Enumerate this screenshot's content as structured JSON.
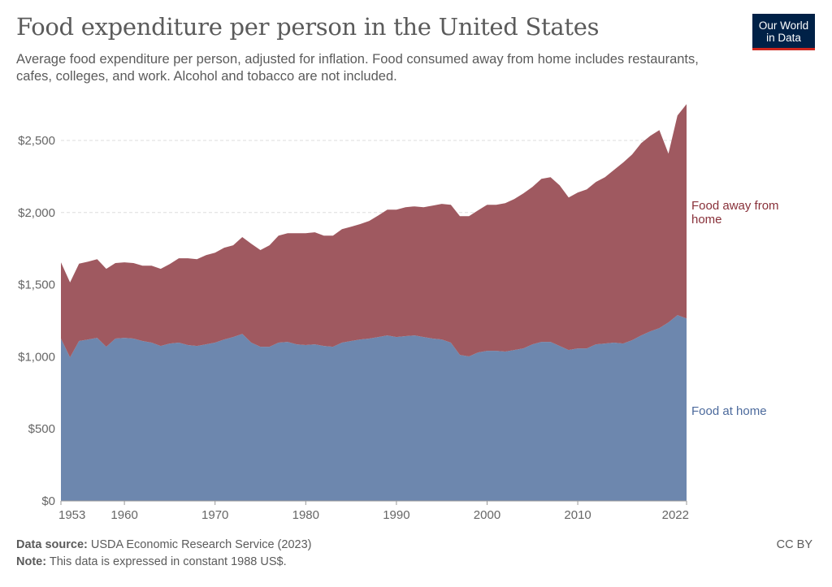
{
  "header": {
    "title": "Food expenditure per person in the United States",
    "subtitle": "Average food expenditure per person, adjusted for inflation. Food consumed away from home includes restaurants, cafes, colleges, and work. Alcohol and tobacco are not included.",
    "logo_line1": "Our World",
    "logo_line2": "in Data"
  },
  "footer": {
    "source_label": "Data source:",
    "source_text": "USDA Economic Research Service (2023)",
    "note_label": "Note:",
    "note_text": "This data is expressed in constant 1988 US$.",
    "license": "CC BY"
  },
  "chart_data": {
    "type": "area",
    "stacked": true,
    "title": "Food expenditure per person in the United States",
    "xlim": [
      1953,
      2022
    ],
    "ylim": [
      0,
      2750
    ],
    "y_ticks": [
      0,
      500,
      1000,
      1500,
      2000,
      2500
    ],
    "y_tick_labels": [
      "$0",
      "$500",
      "$1,000",
      "$1,500",
      "$2,000",
      "$2,500"
    ],
    "x_ticks": [
      1953,
      1960,
      1970,
      1980,
      1990,
      2000,
      2010,
      2022
    ],
    "x_tick_labels": [
      "1953",
      "1960",
      "1970",
      "1980",
      "1990",
      "2000",
      "2010",
      "2022"
    ],
    "grid": "horizontal dashed",
    "legend": "right (inline labels)",
    "x": [
      1953,
      1954,
      1955,
      1956,
      1957,
      1958,
      1959,
      1960,
      1961,
      1962,
      1963,
      1964,
      1965,
      1966,
      1967,
      1968,
      1969,
      1970,
      1971,
      1972,
      1973,
      1974,
      1975,
      1976,
      1977,
      1978,
      1979,
      1980,
      1981,
      1982,
      1983,
      1984,
      1985,
      1986,
      1987,
      1988,
      1989,
      1990,
      1991,
      1992,
      1993,
      1994,
      1995,
      1996,
      1997,
      1998,
      1999,
      2000,
      2001,
      2002,
      2003,
      2004,
      2005,
      2006,
      2007,
      2008,
      2009,
      2010,
      2011,
      2012,
      2013,
      2014,
      2015,
      2016,
      2017,
      2018,
      2019,
      2020,
      2021,
      2022
    ],
    "series": [
      {
        "name": "Food at home",
        "color": "#6d87ae",
        "label_color": "#4c6a9c",
        "values": [
          1126,
          996,
          1109,
          1120,
          1131,
          1069,
          1126,
          1131,
          1126,
          1109,
          1098,
          1075,
          1092,
          1098,
          1081,
          1075,
          1086,
          1098,
          1120,
          1137,
          1159,
          1098,
          1069,
          1069,
          1098,
          1103,
          1086,
          1081,
          1086,
          1075,
          1069,
          1098,
          1109,
          1120,
          1126,
          1137,
          1148,
          1137,
          1143,
          1148,
          1137,
          1126,
          1120,
          1098,
          1013,
          1002,
          1030,
          1041,
          1041,
          1036,
          1047,
          1058,
          1086,
          1103,
          1103,
          1075,
          1047,
          1058,
          1058,
          1086,
          1092,
          1098,
          1092,
          1115,
          1148,
          1176,
          1199,
          1238,
          1289,
          1266
        ]
      },
      {
        "name": "Food away from home",
        "color": "#9f5960",
        "label_color": "#883039",
        "values": [
          529,
          519,
          536,
          540,
          546,
          541,
          524,
          524,
          524,
          523,
          534,
          535,
          551,
          585,
          602,
          602,
          619,
          624,
          636,
          636,
          671,
          686,
          671,
          704,
          742,
          754,
          771,
          776,
          777,
          765,
          771,
          787,
          793,
          800,
          816,
          843,
          872,
          883,
          894,
          895,
          900,
          922,
          940,
          956,
          962,
          973,
          985,
          1013,
          1013,
          1029,
          1047,
          1075,
          1092,
          1131,
          1142,
          1114,
          1058,
          1081,
          1103,
          1126,
          1153,
          1198,
          1255,
          1288,
          1334,
          1356,
          1373,
          1171,
          1384,
          1486
        ]
      }
    ]
  }
}
